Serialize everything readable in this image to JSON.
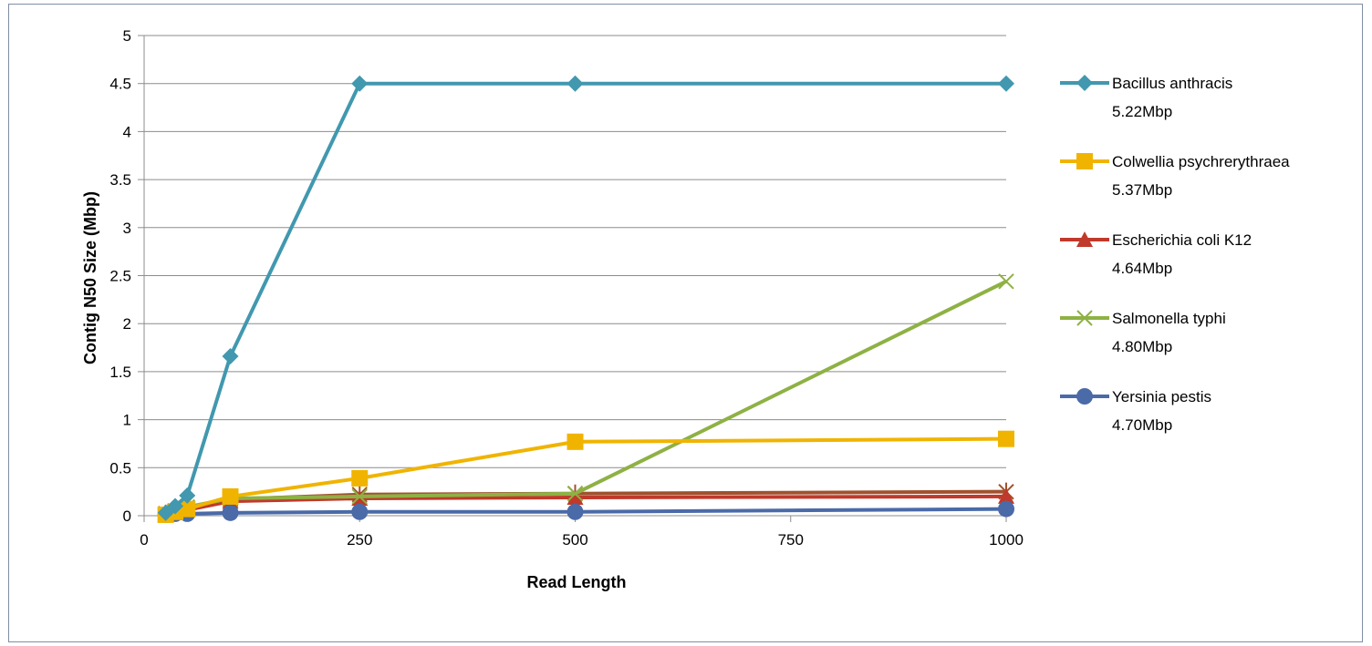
{
  "chart_data": {
    "type": "line",
    "title": "",
    "xlabel": "Read Length",
    "ylabel": "Contig N50 Size (Mbp)",
    "xlim": [
      0,
      1000
    ],
    "ylim": [
      0,
      5
    ],
    "x_tick_labels": [
      "0",
      "250",
      "500",
      "750",
      "1000"
    ],
    "y_tick_labels": [
      "0",
      "0.5",
      "1",
      "1.5",
      "2",
      "2.5",
      "3",
      "3.5",
      "4",
      "4.5",
      "5"
    ],
    "grid": true,
    "legend_position": "right",
    "series": [
      {
        "name": "Bacillus anthracis",
        "subname": "5.22Mbp",
        "color": "#4198af",
        "marker": "diamond",
        "points": [
          [
            25,
            0.03
          ],
          [
            36,
            0.1
          ],
          [
            50,
            0.21
          ],
          [
            100,
            1.66
          ],
          [
            250,
            4.5
          ],
          [
            500,
            4.5
          ],
          [
            1000,
            4.5
          ]
        ]
      },
      {
        "name": "Colwellia psychrerythraea",
        "subname": "5.37Mbp",
        "color": "#f0b400",
        "marker": "square",
        "points": [
          [
            25,
            0.01
          ],
          [
            36,
            0.04
          ],
          [
            50,
            0.07
          ],
          [
            100,
            0.2
          ],
          [
            250,
            0.39
          ],
          [
            500,
            0.77
          ],
          [
            1000,
            0.8
          ]
        ]
      },
      {
        "name": "Escherichia coli K12",
        "subname": "4.64Mbp",
        "color": "#c0392b",
        "marker": "triangle",
        "points": [
          [
            25,
            0.01
          ],
          [
            36,
            0.03
          ],
          [
            50,
            0.06
          ],
          [
            100,
            0.15
          ],
          [
            250,
            0.18
          ],
          [
            500,
            0.19
          ],
          [
            1000,
            0.2
          ]
        ]
      },
      {
        "name": "Salmonella typhi",
        "subname": "4.80Mbp",
        "color": "#8eb144",
        "marker": "x",
        "points": [
          [
            25,
            0.01
          ],
          [
            36,
            0.05
          ],
          [
            50,
            0.09
          ],
          [
            100,
            0.18
          ],
          [
            250,
            0.2
          ],
          [
            500,
            0.23
          ],
          [
            1000,
            2.44
          ]
        ]
      },
      {
        "name": "Yersinia pestis",
        "subname": "4.70Mbp",
        "color": "#4a6aa8",
        "marker": "circle",
        "points": [
          [
            25,
            0.01
          ],
          [
            36,
            0.02
          ],
          [
            50,
            0.02
          ],
          [
            100,
            0.03
          ],
          [
            250,
            0.04
          ],
          [
            500,
            0.04
          ],
          [
            1000,
            0.07
          ]
        ]
      },
      {
        "name": "",
        "subname": "",
        "color": "#a0522d",
        "marker": "star",
        "hide_legend": true,
        "points": [
          [
            25,
            0.02
          ],
          [
            36,
            0.05
          ],
          [
            50,
            0.08
          ],
          [
            100,
            0.17
          ],
          [
            250,
            0.22
          ],
          [
            500,
            0.23
          ],
          [
            1000,
            0.25
          ]
        ]
      }
    ]
  }
}
